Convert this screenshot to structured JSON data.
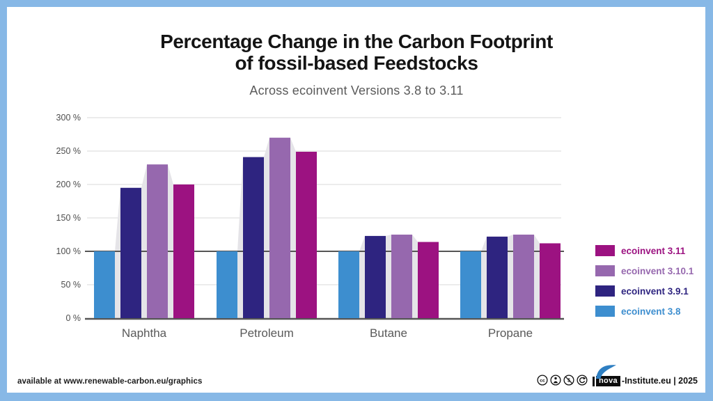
{
  "page": {
    "frame_color": "#87b8e6",
    "card_color": "#ffffff"
  },
  "header": {
    "title_line1": "Percentage Change in the Carbon Footprint",
    "title_line2": "of fossil-based Feedstocks",
    "subtitle": "Across ecoinvent Versions 3.8 to 3.11"
  },
  "chart_data": {
    "type": "bar",
    "title": "Percentage Change in the Carbon Footprint of fossil-based Feedstocks",
    "subtitle": "Across ecoinvent Versions 3.8 to 3.11",
    "categories": [
      "Naphtha",
      "Petroleum",
      "Butane",
      "Propane"
    ],
    "series": [
      {
        "name": "ecoinvent 3.8",
        "color": "#3d8ecf",
        "values": [
          100,
          100,
          100,
          100
        ]
      },
      {
        "name": "ecoinvent 3.9.1",
        "color": "#2e2480",
        "values": [
          195,
          241,
          123,
          122
        ]
      },
      {
        "name": "ecoinvent 3.10.1",
        "color": "#9668ae",
        "values": [
          230,
          270,
          125,
          125
        ]
      },
      {
        "name": "ecoinvent 3.11",
        "color": "#9c1281",
        "values": [
          200,
          249,
          114,
          112
        ]
      }
    ],
    "xlabel": "",
    "ylabel": "",
    "ylim": [
      0,
      300
    ],
    "yticks": [
      0,
      50,
      100,
      150,
      200,
      250,
      300
    ],
    "ytick_suffix": " %",
    "grid": true,
    "baseline_value": 100,
    "legend_position": "right",
    "gridline_color": "#d9d9d9",
    "axis_color": "#555555",
    "silhouette_color": "#e5e4e8",
    "tick_label_color": "#4d4d4d",
    "category_label_color": "#595959"
  },
  "footer": {
    "available_text": "available at www.renewable-carbon.eu/graphics",
    "license_icons": [
      "cc-icon",
      "attribution-icon",
      "non-commercial-icon",
      "share-alike-icon"
    ],
    "nova_label": "nova",
    "credit_text": "-Institute.eu | 2025"
  }
}
